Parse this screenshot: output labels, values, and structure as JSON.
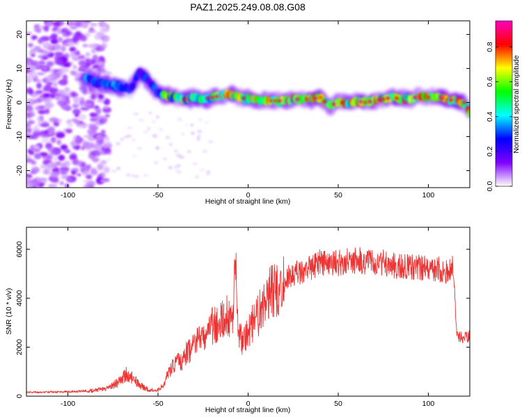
{
  "figure": {
    "title": "PAZ1.2025.249.08.08.G08"
  },
  "chart_data": [
    {
      "type": "heatmap",
      "title": "PAZ1.2025.249.08.08.G08",
      "xlabel": "Height of straight line (km)",
      "ylabel": "Frequency (Hz)",
      "xlim": [
        -123,
        123
      ],
      "ylim": [
        -25,
        24
      ],
      "x_ticks": [
        -100,
        -50,
        0,
        50,
        100
      ],
      "y_ticks": [
        -20,
        -10,
        0,
        10,
        20
      ],
      "x_tick_labels": [
        "-100",
        "-50",
        "0",
        "50",
        "100"
      ],
      "y_tick_labels": [
        "-20",
        "-10",
        "0",
        "10",
        "20"
      ],
      "grid": false,
      "colormap": "rainbow (white to violet to blue to cyan to green to yellow to red to magenta)",
      "ridge": {
        "description": "main signal frequency track (Hz) vs height (km)",
        "x": [
          -90,
          -85,
          -80,
          -75,
          -70,
          -65,
          -60,
          -55,
          -50,
          -45,
          -40,
          -35,
          -30,
          -25,
          -20,
          -15,
          -10,
          -5,
          0,
          5,
          10,
          15,
          20,
          25,
          30,
          35,
          40,
          45,
          50,
          55,
          60,
          65,
          70,
          75,
          80,
          85,
          90,
          95,
          100,
          105,
          110,
          115,
          120,
          123
        ],
        "y": [
          7,
          6,
          5.5,
          5,
          4.5,
          4,
          9,
          6,
          3,
          2,
          1.5,
          1,
          1.5,
          1,
          1.5,
          2,
          2.5,
          1.5,
          1,
          0.5,
          0.5,
          0.5,
          0.5,
          1,
          1,
          1,
          1.5,
          -1,
          0,
          0,
          0.5,
          0,
          0.5,
          1,
          1.5,
          1,
          1,
          2,
          1.5,
          1.5,
          1,
          0.5,
          0,
          -3
        ]
      },
      "colorbar": {
        "label": "Normalized spectral amplitude",
        "range": [
          0,
          0.95
        ],
        "ticks": [
          0.0,
          0.2,
          0.4,
          0.6,
          0.8
        ],
        "tick_labels": [
          "0.0",
          "0.2",
          "0.4",
          "0.6",
          "0.8"
        ],
        "stops": [
          "#ffffff",
          "#8000ff",
          "#0000ff",
          "#00ffff",
          "#00ff00",
          "#ffff00",
          "#ff0000",
          "#ff00c0"
        ]
      }
    },
    {
      "type": "line",
      "xlabel": "Height of straight line (km)",
      "ylabel": "SNR (10 * v/v)",
      "xlim": [
        -123,
        123
      ],
      "ylim": [
        0,
        6900
      ],
      "x_ticks": [
        -100,
        -50,
        0,
        50,
        100
      ],
      "y_ticks": [
        0,
        2000,
        4000,
        6000
      ],
      "x_tick_labels": [
        "-100",
        "-50",
        "0",
        "50",
        "100"
      ],
      "y_tick_labels": [
        "0",
        "2000",
        "4000",
        "6000"
      ],
      "grid": false,
      "color": "#ee3333",
      "series": [
        {
          "x": [
            -123,
            -110,
            -100,
            -95,
            -90,
            -85,
            -80,
            -75,
            -70,
            -68,
            -65,
            -60,
            -55,
            -50,
            -47,
            -45,
            -42,
            -40,
            -37,
            -35,
            -32,
            -30,
            -27,
            -25,
            -22,
            -20,
            -18,
            -15,
            -12,
            -10,
            -8,
            -7,
            -5,
            -3,
            0,
            3,
            5,
            8,
            10,
            12,
            15,
            18,
            20,
            22,
            25,
            28,
            30,
            35,
            40,
            45,
            50,
            55,
            60,
            65,
            70,
            75,
            80,
            85,
            90,
            95,
            100,
            105,
            110,
            114,
            115,
            116,
            118,
            120,
            123
          ],
          "y": [
            150,
            170,
            180,
            190,
            220,
            230,
            300,
            450,
            650,
            900,
            800,
            450,
            250,
            250,
            450,
            800,
            1200,
            1450,
            1400,
            1700,
            1900,
            2100,
            2250,
            2400,
            2700,
            2850,
            2900,
            3100,
            3250,
            3350,
            3000,
            4000,
            2500,
            2300,
            2700,
            3000,
            3250,
            3550,
            3800,
            4150,
            4250,
            4500,
            4650,
            4850,
            5000,
            5050,
            5050,
            5250,
            5500,
            5400,
            5450,
            5500,
            5550,
            5500,
            5450,
            5450,
            5350,
            5300,
            5300,
            5250,
            5200,
            5200,
            5100,
            5250,
            3500,
            2450,
            2400,
            2400,
            2450
          ]
        }
      ]
    }
  ]
}
